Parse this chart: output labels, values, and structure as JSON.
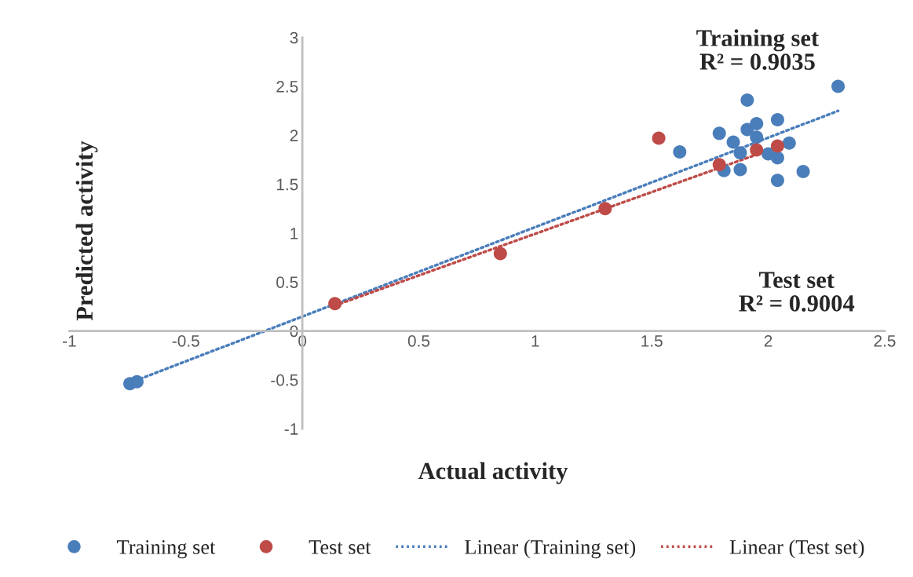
{
  "chart_data": {
    "type": "scatter",
    "xlabel": "Actual activity",
    "ylabel": "Predicted activity",
    "xlim": [
      -1,
      2.5
    ],
    "ylim": [
      -1,
      3
    ],
    "xticks": [
      -1,
      -0.5,
      0,
      0.5,
      1,
      1.5,
      2,
      2.5
    ],
    "yticks": [
      -1,
      -0.5,
      0,
      0.5,
      1,
      1.5,
      2,
      2.5,
      3
    ],
    "grid": false,
    "legend": "bottom",
    "annotations": [
      "Training set\nR² = 0.9035",
      "Test set\nR² = 0.9004"
    ],
    "series": [
      {
        "name": "Training set",
        "marker": "circle",
        "color": "#4a7ebb",
        "x": [
          2.3,
          1.91,
          1.95,
          2.04,
          1.91,
          1.79,
          1.95,
          1.85,
          2.09,
          1.88,
          1.62,
          2.0,
          2.04,
          1.81,
          1.88,
          2.15,
          2.04,
          -0.74,
          -0.71
        ],
        "values": [
          2.5,
          2.36,
          2.12,
          2.16,
          2.06,
          2.02,
          1.98,
          1.93,
          1.92,
          1.82,
          1.83,
          1.81,
          1.77,
          1.64,
          1.65,
          1.63,
          1.54,
          -0.54,
          -0.52
        ]
      },
      {
        "name": "Test set",
        "marker": "circle",
        "color": "#be4b48",
        "x": [
          1.53,
          1.79,
          1.95,
          2.04,
          1.3,
          0.85,
          0.14
        ],
        "values": [
          1.97,
          1.7,
          1.85,
          1.89,
          1.25,
          0.79,
          0.28
        ]
      },
      {
        "name": "Linear (Training set)",
        "type": "line",
        "line_style": "dotted",
        "color": "#4a7ebb",
        "x": [
          -0.74,
          2.3
        ],
        "values": [
          -0.53,
          2.25
        ]
      },
      {
        "name": "Linear (Test set)",
        "type": "line",
        "line_style": "dotted",
        "color": "#be4b48",
        "x": [
          0.14,
          2.04
        ],
        "values": [
          0.26,
          1.88
        ]
      }
    ]
  }
}
